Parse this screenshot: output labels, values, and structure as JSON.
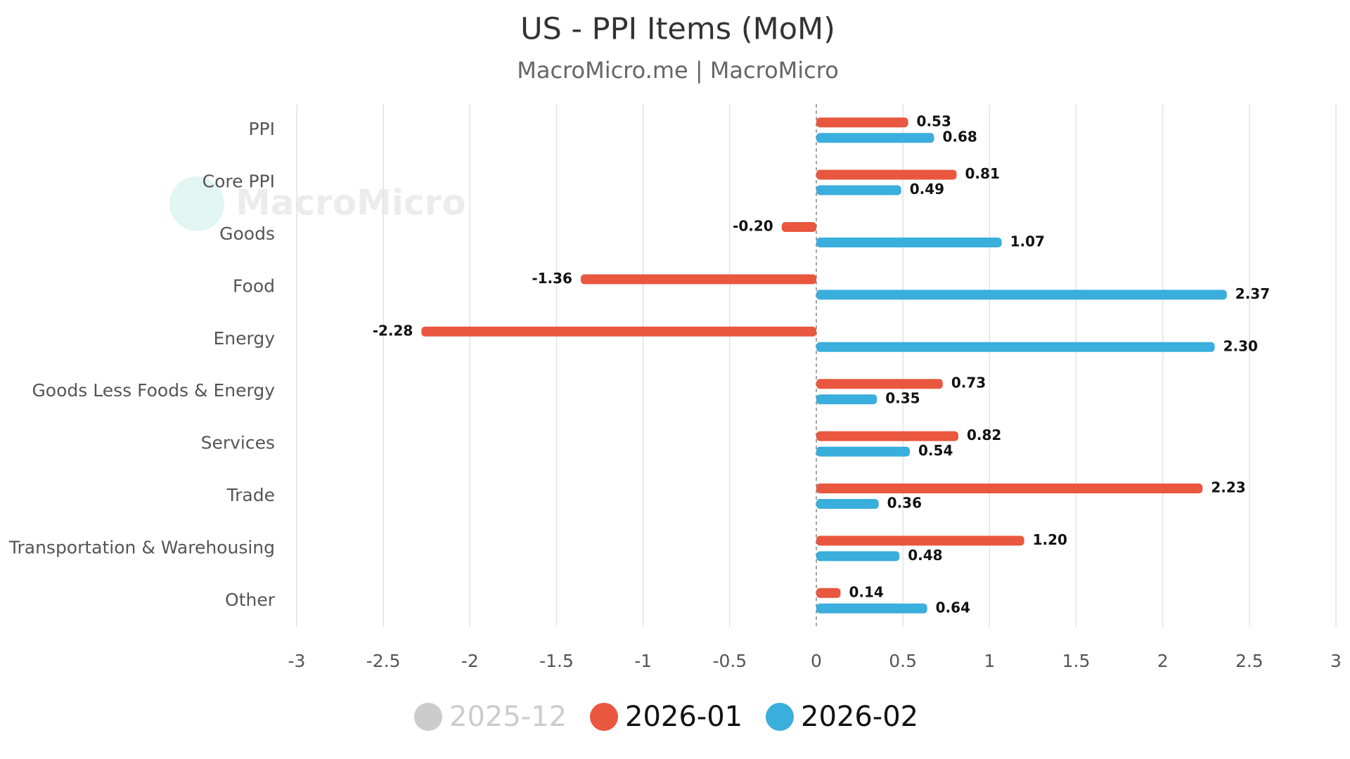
{
  "chart_data": {
    "type": "hbar",
    "title": "US - PPI Items (MoM)",
    "subtitle": "MacroMicro.me | MacroMicro",
    "watermark": "MacroMicro",
    "categories": [
      "PPI",
      "Core PPI",
      "Goods",
      "Food",
      "Energy",
      "Goods Less Foods & Energy",
      "Services",
      "Trade",
      "Transportation & Warehousing",
      "Other"
    ],
    "series": [
      {
        "name": "2026-01",
        "color": "#e9573f",
        "values": [
          0.53,
          0.81,
          -0.2,
          -1.36,
          -2.28,
          0.73,
          0.82,
          2.23,
          1.2,
          0.14
        ],
        "value_labels": [
          "0.53",
          "0.81",
          "-0.20",
          "-1.36",
          "-2.28",
          "0.73",
          "0.82",
          "2.23",
          "1.20",
          "0.14"
        ]
      },
      {
        "name": "2026-02",
        "color": "#3aaedc",
        "values": [
          0.68,
          0.49,
          1.07,
          2.37,
          2.3,
          0.35,
          0.54,
          0.36,
          0.48,
          0.64
        ],
        "value_labels": [
          "0.68",
          "0.49",
          "1.07",
          "2.37",
          "2.30",
          "0.35",
          "0.54",
          "0.36",
          "0.48",
          "0.64"
        ]
      }
    ],
    "hidden_series": [
      {
        "name": "2025-12",
        "color": "#cccccc"
      }
    ],
    "xlim": [
      -3,
      3
    ],
    "xticks": [
      -3,
      -2.5,
      -2,
      -1.5,
      -1,
      -0.5,
      0,
      0.5,
      1,
      1.5,
      2,
      2.5,
      3
    ],
    "grid": true,
    "legend": "bottom"
  }
}
